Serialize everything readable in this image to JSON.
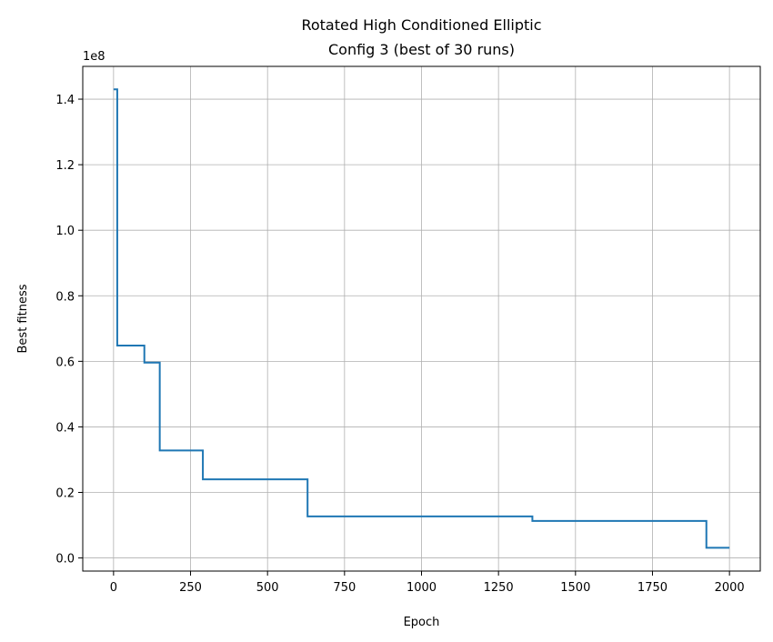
{
  "chart_data": {
    "type": "line",
    "title": "Rotated High Conditioned Elliptic",
    "subtitle": "Config 3  (best of 30 runs)",
    "xlabel": "Epoch",
    "ylabel": "Best fitness",
    "y_offset_label": "1e8",
    "xlim": [
      -100,
      2100
    ],
    "ylim": [
      -0.04,
      1.5
    ],
    "x_ticks": [
      0,
      250,
      500,
      750,
      1000,
      1250,
      1500,
      1750,
      2000
    ],
    "x_tick_labels": [
      "0",
      "250",
      "500",
      "750",
      "1000",
      "1250",
      "1500",
      "1750",
      "2000"
    ],
    "y_ticks": [
      0.0,
      0.2,
      0.4,
      0.6,
      0.8,
      1.0,
      1.2,
      1.4
    ],
    "y_tick_labels": [
      "0.0",
      "0.2",
      "0.4",
      "0.6",
      "0.8",
      "1.0",
      "1.2",
      "1.4"
    ],
    "grid": true,
    "color": "#1f77b4",
    "series": [
      {
        "step": "post",
        "x": [
          0,
          12,
          100,
          150,
          290,
          630,
          1360,
          1925,
          2000
        ],
        "y": [
          1.43,
          0.648,
          0.596,
          0.328,
          0.24,
          0.127,
          0.113,
          0.031,
          0.031
        ]
      }
    ]
  }
}
